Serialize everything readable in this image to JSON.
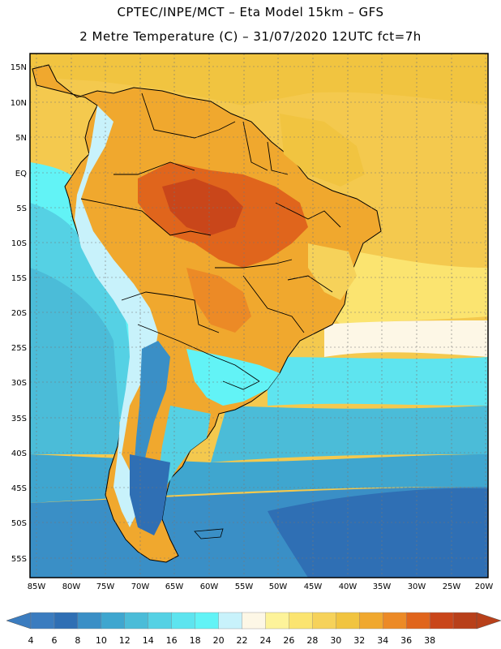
{
  "header": {
    "line1": "CPTEC/INPE/MCT –  Eta Model 15km – GFS",
    "line2": "2 Metre Temperature (C) – 31/07/2020 12UTC fct=7h"
  },
  "map": {
    "region": "South America",
    "lat_labels": [
      "15N",
      "10N",
      "5N",
      "EQ",
      "5S",
      "10S",
      "15S",
      "20S",
      "25S",
      "30S",
      "35S",
      "40S",
      "45S",
      "50S",
      "55S"
    ],
    "lon_labels": [
      "85W",
      "80W",
      "75W",
      "70W",
      "65W",
      "60W",
      "55W",
      "50W",
      "45W",
      "40W",
      "35W",
      "30W",
      "25W",
      "20W"
    ],
    "lat_range": [
      -58,
      16
    ],
    "lon_range": [
      -86,
      -20
    ]
  },
  "colorbar": {
    "labels": [
      "4",
      "6",
      "8",
      "10",
      "12",
      "14",
      "16",
      "18",
      "20",
      "22",
      "24",
      "26",
      "28",
      "30",
      "32",
      "34",
      "36",
      "38"
    ],
    "colors": [
      "#3b7cbf",
      "#2f6fb4",
      "#3a8fc6",
      "#3fa6cf",
      "#4bbcd8",
      "#55d1e4",
      "#5ee4ef",
      "#62f3f6",
      "#c8f2fb",
      "#fdf7e6",
      "#fdf39a",
      "#fbe470",
      "#f6d25a",
      "#f1c440",
      "#f0a82e",
      "#ec8a26",
      "#e0651c",
      "#c9461a",
      "#b8401a"
    ],
    "left_arrow_color": "#3b7cbf",
    "right_arrow_color": "#b8401a"
  }
}
